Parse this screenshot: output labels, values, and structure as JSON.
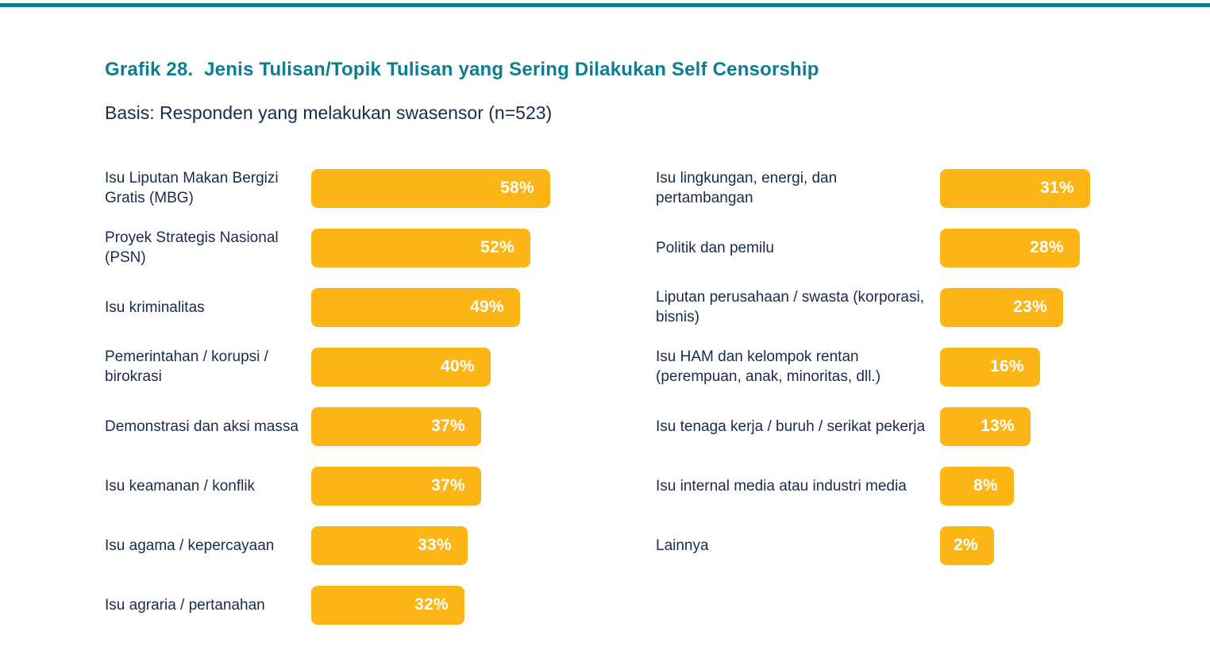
{
  "header": {
    "title": "Grafik 28.  Jenis Tulisan/Topik Tulisan yang Sering Dilakukan Self Censorship",
    "subtitle": "Basis: Responden yang melakukan swasensor (n=523)"
  },
  "colors": {
    "bar": "#FBB615",
    "title": "#0D7D91",
    "text": "#1A2B4B",
    "top_rule": "#0D7D91",
    "value_text": "#FFFFFF"
  },
  "chart_data": {
    "type": "bar",
    "orientation": "horizontal",
    "value_unit": "%",
    "title": "Grafik 28. Jenis Tulisan/Topik Tulisan yang Sering Dilakukan Self Censorship",
    "basis": "Responden yang melakukan swasensor (n=523)",
    "n": 523,
    "value_range": [
      0,
      100
    ],
    "grid": false,
    "legend": false,
    "columns": [
      {
        "items": [
          {
            "label": "Isu Liputan Makan Bergizi Gratis (MBG)",
            "value": 58,
            "display": "58%"
          },
          {
            "label": "Proyek Strategis Nasional (PSN)",
            "value": 52,
            "display": "52%"
          },
          {
            "label": "Isu kriminalitas",
            "value": 49,
            "display": "49%"
          },
          {
            "label": "Pemerintahan / korupsi / birokrasi",
            "value": 40,
            "display": "40%"
          },
          {
            "label": "Demonstrasi dan aksi massa",
            "value": 37,
            "display": "37%"
          },
          {
            "label": "Isu keamanan / konflik",
            "value": 37,
            "display": "37%"
          },
          {
            "label": "Isu agama / kepercayaan",
            "value": 33,
            "display": "33%"
          },
          {
            "label": "Isu agraria / pertanahan",
            "value": 32,
            "display": "32%"
          }
        ]
      },
      {
        "items": [
          {
            "label": "Isu lingkungan, energi, dan pertambangan",
            "value": 31,
            "display": "31%"
          },
          {
            "label": "Politik dan pemilu",
            "value": 28,
            "display": "28%"
          },
          {
            "label": "Liputan perusahaan / swasta (korporasi, bisnis)",
            "value": 23,
            "display": "23%"
          },
          {
            "label": "Isu HAM dan kelompok rentan (perempuan, anak, minoritas, dll.)",
            "value": 16,
            "display": "16%"
          },
          {
            "label": "Isu tenaga kerja / buruh / serikat pekerja",
            "value": 13,
            "display": "13%"
          },
          {
            "label": "Isu internal media atau industri media",
            "value": 8,
            "display": "8%"
          },
          {
            "label": "Lainnya",
            "value": 2,
            "display": "2%"
          }
        ]
      }
    ]
  }
}
